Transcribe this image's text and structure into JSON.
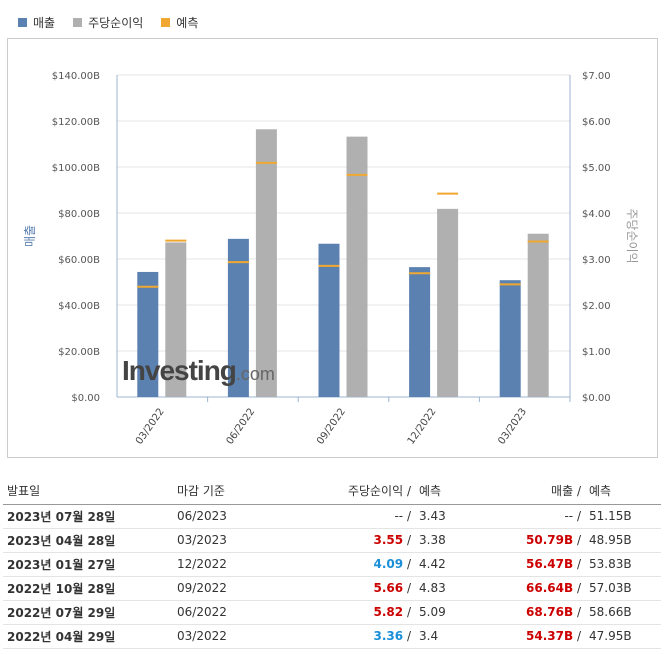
{
  "legend": {
    "revenue": "매출",
    "eps": "주당순이익",
    "forecast": "예측"
  },
  "colors": {
    "revenue": "#5b81b0",
    "eps": "#b0b0b0",
    "forecast": "#f0a830"
  },
  "logo": {
    "main": "Investing",
    "suffix": ".com"
  },
  "chart_data": {
    "type": "bar",
    "categories": [
      "03/2022",
      "06/2022",
      "09/2022",
      "12/2022",
      "03/2023"
    ],
    "series": [
      {
        "name": "매출",
        "axis": "left",
        "values": [
          54.37,
          68.76,
          66.64,
          56.47,
          50.79
        ],
        "forecast": [
          47.95,
          58.66,
          57.03,
          53.83,
          48.95
        ]
      },
      {
        "name": "주당순이익",
        "axis": "right",
        "values": [
          3.36,
          5.82,
          5.66,
          4.09,
          3.55
        ],
        "forecast": [
          3.4,
          5.09,
          4.83,
          4.42,
          3.38
        ]
      }
    ],
    "ylabel": "매출",
    "y2label": "주당순이익",
    "ylim": [
      0,
      140
    ],
    "y2lim": [
      0,
      7
    ],
    "yticks": [
      "$0.00",
      "$20.00B",
      "$40.00B",
      "$60.00B",
      "$80.00B",
      "$100.00B",
      "$120.00B",
      "$140.00B"
    ],
    "y2ticks": [
      "$0.00",
      "$1.00",
      "$2.00",
      "$3.00",
      "$4.00",
      "$5.00",
      "$6.00",
      "$7.00"
    ],
    "grid": true
  },
  "table": {
    "headers": {
      "date": "발표일",
      "period": "마감 기준",
      "eps": "주당순이익",
      "eps_fc": "예측",
      "rev": "매출",
      "rev_fc": "예측"
    },
    "rows": [
      {
        "date": "2023년 07월 28일",
        "period": "06/2023",
        "eps": "--",
        "eps_fc": "3.43",
        "rev": "--",
        "rev_fc": "51.15B",
        "eps_class": "",
        "rev_class": ""
      },
      {
        "date": "2023년 04월 28일",
        "period": "03/2023",
        "eps": "3.55",
        "eps_fc": "3.38",
        "rev": "50.79B",
        "rev_fc": "48.95B",
        "eps_class": "red",
        "rev_class": "red"
      },
      {
        "date": "2023년 01월 27일",
        "period": "12/2022",
        "eps": "4.09",
        "eps_fc": "4.42",
        "rev": "56.47B",
        "rev_fc": "53.83B",
        "eps_class": "blue",
        "rev_class": "red"
      },
      {
        "date": "2022년 10월 28일",
        "period": "09/2022",
        "eps": "5.66",
        "eps_fc": "4.83",
        "rev": "66.64B",
        "rev_fc": "57.03B",
        "eps_class": "red",
        "rev_class": "red"
      },
      {
        "date": "2022년 07월 29일",
        "period": "06/2022",
        "eps": "5.82",
        "eps_fc": "5.09",
        "rev": "68.76B",
        "rev_fc": "58.66B",
        "eps_class": "red",
        "rev_class": "red"
      },
      {
        "date": "2022년 04월 29일",
        "period": "03/2022",
        "eps": "3.36",
        "eps_fc": "3.4",
        "rev": "54.37B",
        "rev_fc": "47.95B",
        "eps_class": "blue",
        "rev_class": "red"
      }
    ]
  }
}
